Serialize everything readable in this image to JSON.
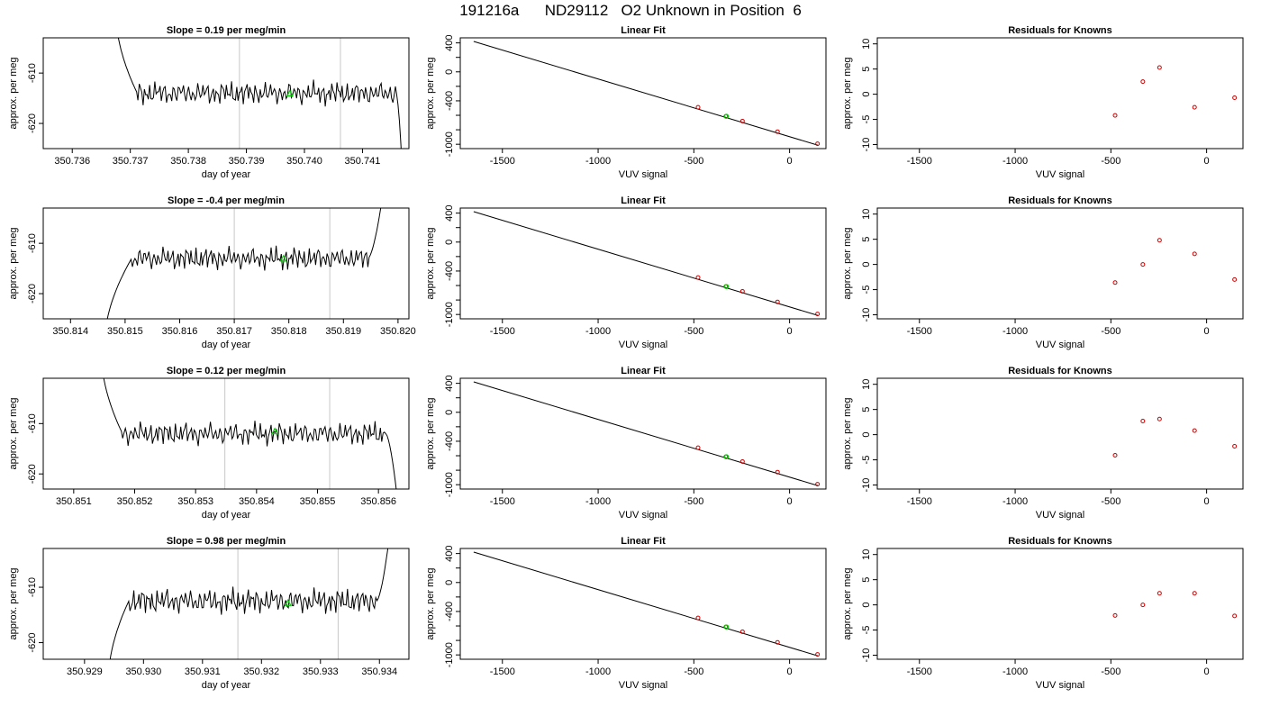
{
  "title": "191216a      ND29112   O2 Unknown in Position  6",
  "colors": {
    "trace": "#000000",
    "marker": "#00cc00",
    "residual": "#cc0000",
    "vline": "#c8c8c8",
    "axis": "#000000"
  },
  "chart_data": {
    "type": "grid",
    "rows": [
      {
        "trace": {
          "type": "line",
          "title": "Slope =  0.19  per meg/min",
          "xlabel": "day of year",
          "ylabel": "approx. per meg",
          "xlim": [
            350.7355,
            350.7418
          ],
          "ylim": [
            -625,
            -603
          ],
          "xticks": [
            "350.736",
            "350.737",
            "350.738",
            "350.739",
            "350.740",
            "350.741"
          ],
          "xtick_values": [
            350.736,
            350.737,
            350.738,
            350.739,
            350.74,
            350.741
          ],
          "yticks": [
            "-610",
            "-620"
          ],
          "ytick_values": [
            -610,
            -620
          ],
          "vlines": [
            350.73888,
            350.74062
          ],
          "data_start": 350.73675,
          "data_end": 350.74168,
          "base_start": 350.73712,
          "base_end": 350.74158,
          "center": -614,
          "amplitude": 2.2,
          "initial_level": -598,
          "end_level": -628,
          "marker": {
            "x": 350.73975,
            "y": -614
          }
        },
        "fit": {
          "type": "line",
          "title": "Linear Fit",
          "xlabel": "VUV signal",
          "ylabel": "approx. per meg",
          "xlim": [
            -1720,
            190
          ],
          "ylim": [
            -1060,
            470
          ],
          "xticks": [
            "-1500",
            "-1000",
            "-500",
            "0"
          ],
          "xtick_values": [
            -1500,
            -1000,
            -500,
            0
          ],
          "yticks": [
            "400",
            "0",
            "-400",
            "-1000"
          ],
          "ytick_values": [
            400,
            0,
            -400,
            -1000
          ],
          "yticks_minor": [
            200,
            -200,
            -600,
            -800
          ],
          "line": [
            [
              -1650,
              420
            ],
            [
              150,
              -1015
            ]
          ],
          "points": [
            [
              -478,
              -490
            ],
            [
              -333,
              -614
            ],
            [
              -246,
              -680
            ],
            [
              -63,
              -826
            ],
            [
              146,
              -993
            ]
          ],
          "unknown": [
            -330,
            -614
          ]
        },
        "residuals": {
          "type": "scatter",
          "title": "Residuals for Knowns",
          "xlabel": "VUV signal",
          "ylabel": "approx. per meg",
          "xlim": [
            -1720,
            190
          ],
          "ylim": [
            -10.8,
            11.2
          ],
          "xticks": [
            "-1500",
            "-1000",
            "-500",
            "0"
          ],
          "xtick_values": [
            -1500,
            -1000,
            -500,
            0
          ],
          "yticks": [
            "10",
            "5",
            "0",
            "-5",
            "-10"
          ],
          "ytick_values": [
            10,
            5,
            0,
            -5,
            -10
          ],
          "points": [
            [
              -478,
              -4.2
            ],
            [
              -333,
              2.5
            ],
            [
              -246,
              5.3
            ],
            [
              -63,
              -2.6
            ],
            [
              146,
              -0.7
            ]
          ]
        }
      },
      {
        "trace": {
          "type": "line",
          "title": "Slope =  -0.4  per meg/min",
          "xlabel": "day of year",
          "ylabel": "approx. per meg",
          "xlim": [
            350.8135,
            350.8202
          ],
          "ylim": [
            -625,
            -603
          ],
          "xticks": [
            "350.814",
            "350.815",
            "350.816",
            "350.817",
            "350.818",
            "350.819",
            "350.820"
          ],
          "xtick_values": [
            350.814,
            350.815,
            350.816,
            350.817,
            350.818,
            350.819,
            350.82
          ],
          "yticks": [
            "-610",
            "-620"
          ],
          "ytick_values": [
            -610,
            -620
          ],
          "vlines": [
            350.817,
            350.81875
          ],
          "data_start": 350.81462,
          "data_end": 350.81975,
          "base_start": 350.81512,
          "base_end": 350.81945,
          "center": -613,
          "amplitude": 2.2,
          "initial_level": -630,
          "end_level": -598,
          "marker": {
            "x": 350.8179,
            "y": -613
          }
        },
        "fit": {
          "type": "line",
          "title": "Linear Fit",
          "xlabel": "VUV signal",
          "ylabel": "approx. per meg",
          "xlim": [
            -1720,
            190
          ],
          "ylim": [
            -1060,
            470
          ],
          "xticks": [
            "-1500",
            "-1000",
            "-500",
            "0"
          ],
          "xtick_values": [
            -1500,
            -1000,
            -500,
            0
          ],
          "yticks": [
            "400",
            "0",
            "-400",
            "-1000"
          ],
          "ytick_values": [
            400,
            0,
            -400,
            -1000
          ],
          "yticks_minor": [
            200,
            -200,
            -600,
            -800
          ],
          "line": [
            [
              -1650,
              420
            ],
            [
              150,
              -1015
            ]
          ],
          "points": [
            [
              -478,
              -490
            ],
            [
              -333,
              -614
            ],
            [
              -246,
              -680
            ],
            [
              -63,
              -826
            ],
            [
              146,
              -993
            ]
          ],
          "unknown": [
            -330,
            -614
          ]
        },
        "residuals": {
          "type": "scatter",
          "title": "Residuals for Knowns",
          "xlabel": "VUV signal",
          "ylabel": "approx. per meg",
          "xlim": [
            -1720,
            190
          ],
          "ylim": [
            -10.8,
            11.2
          ],
          "xticks": [
            "-1500",
            "-1000",
            "-500",
            "0"
          ],
          "xtick_values": [
            -1500,
            -1000,
            -500,
            0
          ],
          "yticks": [
            "10",
            "5",
            "0",
            "-5",
            "-10"
          ],
          "ytick_values": [
            10,
            5,
            0,
            -5,
            -10
          ],
          "points": [
            [
              -478,
              -3.6
            ],
            [
              -333,
              0.0
            ],
            [
              -246,
              4.8
            ],
            [
              -63,
              2.1
            ],
            [
              146,
              -3.0
            ]
          ]
        }
      },
      {
        "trace": {
          "type": "line",
          "title": "Slope =  0.12  per meg/min",
          "xlabel": "day of year",
          "ylabel": "approx. per meg",
          "xlim": [
            350.8505,
            350.8565
          ],
          "ylim": [
            -623,
            -601
          ],
          "xticks": [
            "350.851",
            "350.852",
            "350.853",
            "350.854",
            "350.855",
            "350.856"
          ],
          "xtick_values": [
            350.851,
            350.852,
            350.853,
            350.854,
            350.855,
            350.856
          ],
          "yticks": [
            "-610",
            "-620"
          ],
          "ytick_values": [
            -610,
            -620
          ],
          "vlines": [
            350.85348,
            350.8552
          ],
          "data_start": 350.85145,
          "data_end": 350.85632,
          "base_start": 350.8518,
          "base_end": 350.85612,
          "center": -612,
          "amplitude": 2.2,
          "initial_level": -596,
          "end_level": -626,
          "marker": {
            "x": 350.8543,
            "y": -611.5
          }
        },
        "fit": {
          "type": "line",
          "title": "Linear Fit",
          "xlabel": "VUV signal",
          "ylabel": "approx. per meg",
          "xlim": [
            -1720,
            190
          ],
          "ylim": [
            -1060,
            470
          ],
          "xticks": [
            "-1500",
            "-1000",
            "-500",
            "0"
          ],
          "xtick_values": [
            -1500,
            -1000,
            -500,
            0
          ],
          "yticks": [
            "400",
            "0",
            "-400",
            "-1000"
          ],
          "ytick_values": [
            400,
            0,
            -400,
            -1000
          ],
          "yticks_minor": [
            200,
            -200,
            -600,
            -800
          ],
          "line": [
            [
              -1650,
              420
            ],
            [
              150,
              -1015
            ]
          ],
          "points": [
            [
              -478,
              -490
            ],
            [
              -333,
              -614
            ],
            [
              -246,
              -680
            ],
            [
              -63,
              -826
            ],
            [
              146,
              -993
            ]
          ],
          "unknown": [
            -330,
            -614
          ]
        },
        "residuals": {
          "type": "scatter",
          "title": "Residuals for Knowns",
          "xlabel": "VUV signal",
          "ylabel": "approx. per meg",
          "xlim": [
            -1720,
            190
          ],
          "ylim": [
            -10.8,
            11.2
          ],
          "xticks": [
            "-1500",
            "-1000",
            "-500",
            "0"
          ],
          "xtick_values": [
            -1500,
            -1000,
            -500,
            0
          ],
          "yticks": [
            "10",
            "5",
            "0",
            "-5",
            "-10"
          ],
          "ytick_values": [
            10,
            5,
            0,
            -5,
            -10
          ],
          "points": [
            [
              -478,
              -4.1
            ],
            [
              -333,
              2.7
            ],
            [
              -246,
              3.1
            ],
            [
              -63,
              0.8
            ],
            [
              146,
              -2.3
            ]
          ]
        }
      },
      {
        "trace": {
          "type": "line",
          "title": "Slope =  0.98  per meg/min",
          "xlabel": "day of year",
          "ylabel": "approx. per meg",
          "xlim": [
            350.9283,
            350.9345
          ],
          "ylim": [
            -623,
            -603
          ],
          "xticks": [
            "350.929",
            "350.930",
            "350.931",
            "350.932",
            "350.933",
            "350.934"
          ],
          "xtick_values": [
            350.929,
            350.93,
            350.931,
            350.932,
            350.933,
            350.934
          ],
          "yticks": [
            "-610",
            "-620"
          ],
          "ytick_values": [
            -610,
            -620
          ],
          "vlines": [
            350.9316,
            350.9333
          ],
          "data_start": 350.9294,
          "data_end": 350.9342,
          "base_start": 350.92975,
          "base_end": 350.93395,
          "center": -612.5,
          "amplitude": 2.2,
          "initial_level": -627,
          "end_level": -598,
          "marker": {
            "x": 350.93245,
            "y": -612.8
          }
        },
        "fit": {
          "type": "line",
          "title": "Linear Fit",
          "xlabel": "VUV signal",
          "ylabel": "approx. per meg",
          "xlim": [
            -1720,
            190
          ],
          "ylim": [
            -1060,
            470
          ],
          "xticks": [
            "-1500",
            "-1000",
            "-500",
            "0"
          ],
          "xtick_values": [
            -1500,
            -1000,
            -500,
            0
          ],
          "yticks": [
            "400",
            "0",
            "-400",
            "-1000"
          ],
          "ytick_values": [
            400,
            0,
            -400,
            -1000
          ],
          "yticks_minor": [
            200,
            -200,
            -600,
            -800
          ],
          "line": [
            [
              -1650,
              420
            ],
            [
              150,
              -1015
            ]
          ],
          "points": [
            [
              -478,
              -490
            ],
            [
              -333,
              -614
            ],
            [
              -246,
              -680
            ],
            [
              -63,
              -826
            ],
            [
              146,
              -993
            ]
          ],
          "unknown": [
            -330,
            -614
          ]
        },
        "residuals": {
          "type": "scatter",
          "title": "Residuals for Knowns",
          "xlabel": "VUV signal",
          "ylabel": "approx. per meg",
          "xlim": [
            -1720,
            190
          ],
          "ylim": [
            -10.8,
            11.2
          ],
          "xticks": [
            "-1500",
            "-1000",
            "-500",
            "0"
          ],
          "xtick_values": [
            -1500,
            -1000,
            -500,
            0
          ],
          "yticks": [
            "10",
            "5",
            "0",
            "-5",
            "-10"
          ],
          "ytick_values": [
            10,
            5,
            0,
            -5,
            -10
          ],
          "points": [
            [
              -478,
              -2.1
            ],
            [
              -333,
              0.0
            ],
            [
              -246,
              2.3
            ],
            [
              -63,
              2.3
            ],
            [
              146,
              -2.2
            ]
          ]
        }
      }
    ]
  }
}
